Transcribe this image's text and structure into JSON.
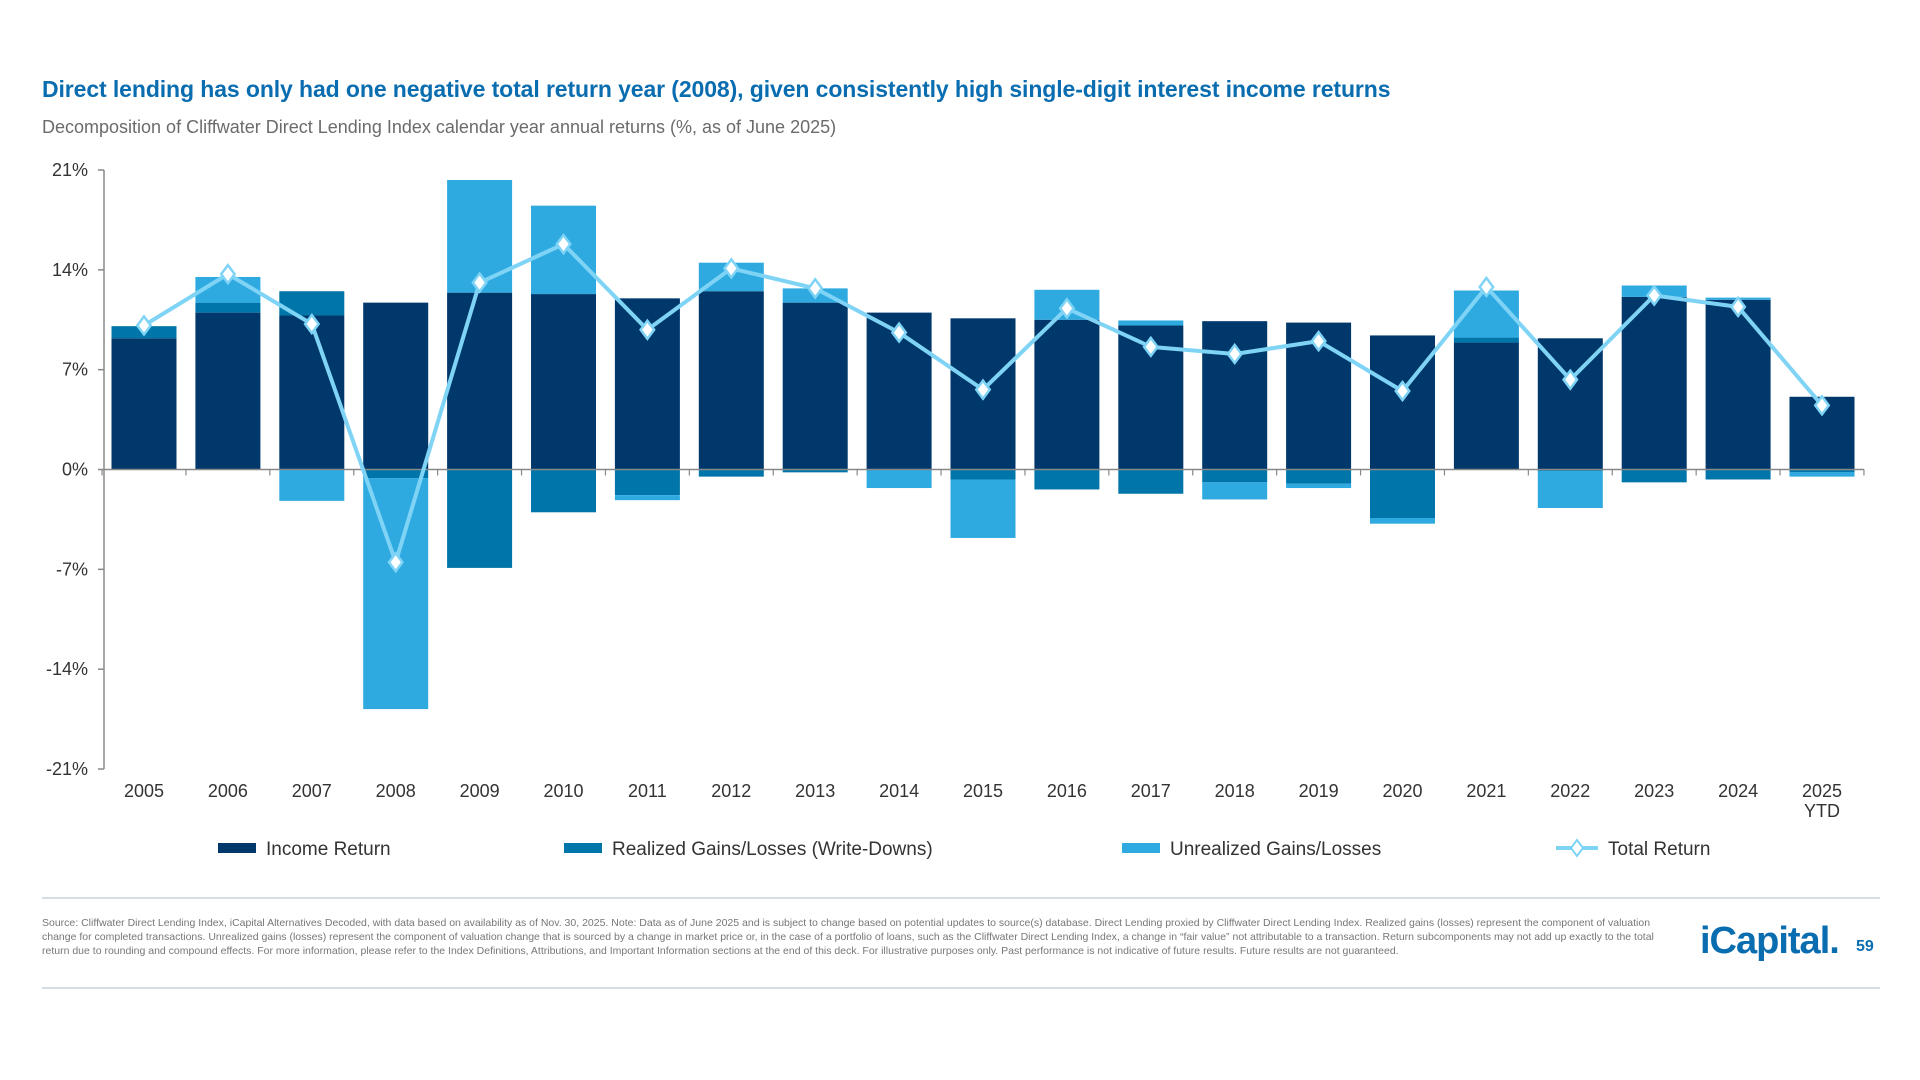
{
  "header": {
    "title": "Direct lending has only had one negative total return year (2008), given consistently high single-digit interest income returns",
    "subtitle": "Decomposition of Cliffwater Direct Lending Index calendar year annual returns (%, as of June 2025)"
  },
  "chart_data": {
    "type": "bar",
    "stacked": true,
    "categories": [
      "2005",
      "2006",
      "2007",
      "2008",
      "2009",
      "2010",
      "2011",
      "2012",
      "2013",
      "2014",
      "2015",
      "2016",
      "2017",
      "2018",
      "2019",
      "2020",
      "2021",
      "2022",
      "2023",
      "2024",
      "2025 YTD"
    ],
    "category_labels": [
      [
        "2005"
      ],
      [
        "2006"
      ],
      [
        "2007"
      ],
      [
        "2008"
      ],
      [
        "2009"
      ],
      [
        "2010"
      ],
      [
        "2011"
      ],
      [
        "2012"
      ],
      [
        "2013"
      ],
      [
        "2014"
      ],
      [
        "2015"
      ],
      [
        "2016"
      ],
      [
        "2017"
      ],
      [
        "2018"
      ],
      [
        "2019"
      ],
      [
        "2020"
      ],
      [
        "2021"
      ],
      [
        "2022"
      ],
      [
        "2023"
      ],
      [
        "2024"
      ],
      [
        "2025",
        "YTD"
      ]
    ],
    "ylim": [
      -21,
      21
    ],
    "yticks": [
      21,
      14,
      7,
      0,
      -7,
      -14,
      -21
    ],
    "ytick_labels": [
      "21%",
      "14%",
      "7%",
      "0%",
      "-7%",
      "-14%",
      "-21%"
    ],
    "grid": false,
    "legend_position": "bottom",
    "series": [
      {
        "name": "Income Return",
        "kind": "bar",
        "color": "#00386b",
        "values": [
          9.2,
          11.0,
          10.8,
          11.7,
          12.4,
          12.3,
          12.0,
          12.5,
          11.7,
          11.0,
          10.6,
          10.5,
          10.1,
          10.4,
          10.3,
          9.4,
          8.9,
          9.2,
          12.1,
          11.9,
          5.1
        ]
      },
      {
        "name": "Realized Gains/Losses (Write-Downs)",
        "kind": "bar",
        "color": "#0075a9",
        "values": [
          0.85,
          0.7,
          1.7,
          -0.6,
          -6.9,
          -3.0,
          -1.8,
          -0.5,
          -0.2,
          0.0,
          -0.7,
          -1.4,
          -1.7,
          -0.9,
          -1.0,
          -3.4,
          0.35,
          -0.1,
          -0.9,
          -0.7,
          -0.2
        ]
      },
      {
        "name": "Unrealized Gains/Losses",
        "kind": "bar",
        "color": "#2eaae1",
        "values": [
          0.0,
          1.8,
          -2.2,
          -16.2,
          7.9,
          6.2,
          -0.35,
          2.0,
          1.0,
          -1.3,
          -4.1,
          2.1,
          0.35,
          -1.2,
          -0.3,
          -0.4,
          3.3,
          -2.6,
          0.8,
          0.15,
          -0.3
        ]
      },
      {
        "name": "Total Return",
        "kind": "line",
        "color": "#7fd4f6",
        "values": [
          10.1,
          13.7,
          10.2,
          -6.5,
          13.1,
          15.8,
          9.8,
          14.1,
          12.7,
          9.6,
          5.6,
          11.3,
          8.6,
          8.1,
          9.0,
          5.5,
          12.8,
          6.3,
          12.2,
          11.4,
          4.5
        ]
      }
    ]
  },
  "footer": {
    "note": "Source: Cliffwater Direct Lending Index, iCapital Alternatives Decoded, with data based on availability as of Nov. 30, 2025. Note: Data as of June 2025 and is subject to change based on potential updates to source(s) database. Direct Lending proxied by Cliffwater Direct Lending Index. Realized gains (losses) represent the component of valuation change for completed transactions. Unrealized gains (losses) represent the component of valuation change that is sourced by a change in market price or, in the case of a portfolio of loans, such as the Cliffwater Direct Lending Index, a change in “fair value” not attributable to a transaction. Return subcomponents may not add up exactly to the total return due to rounding and compound effects. For more information, please refer to the Index Definitions, Attributions, and Important Information sections at the end of this deck. For illustrative purposes only. Past performance is not indicative of future results. Future results are not guaranteed.",
    "logo": "iCapital.",
    "page_number": "59"
  }
}
